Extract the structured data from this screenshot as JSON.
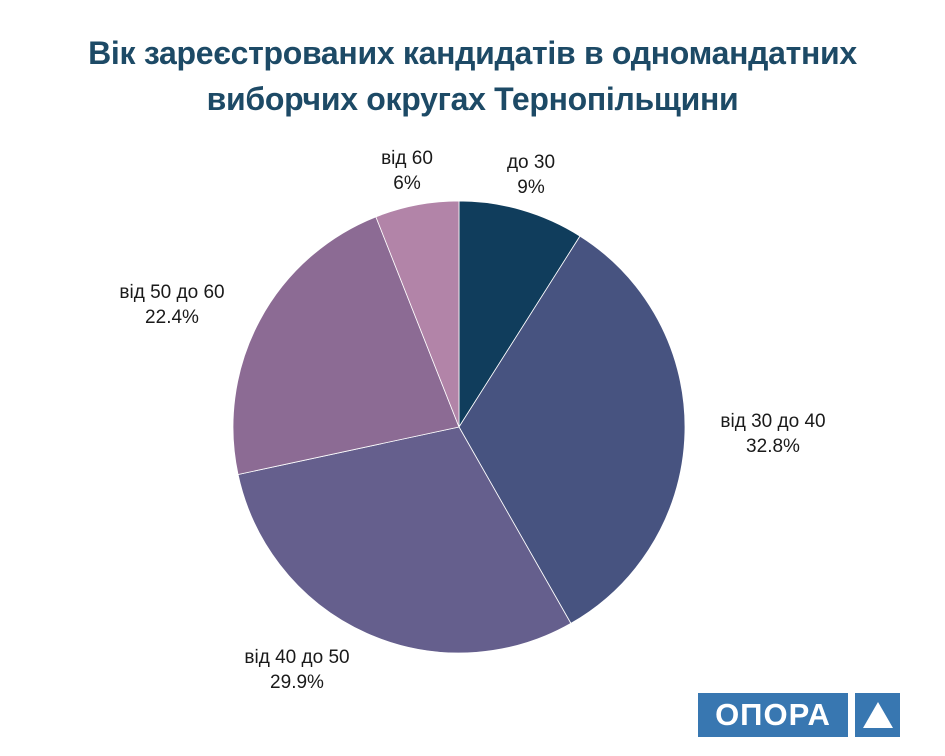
{
  "title": {
    "full": "Вік зареєстрованих кандидатів в одномандатних виборчих округах Тернопільщини",
    "lines": [
      "Вік зареєстрованих кандидатів в одномандатних",
      "виборчих округах Тернопільщини"
    ],
    "color": "#1d4a66"
  },
  "chart_data": {
    "type": "pie",
    "title": "Вік зареєстрованих кандидатів в одномандатних виборчих округах Тернопільщини",
    "legend": "none",
    "direction": "clockwise",
    "start_angle": "12 o'clock",
    "labels_position": "outside",
    "categories": [
      "до 30",
      "від 30 до 40",
      "від 40 до 50",
      "від 50 до 60",
      "від 60"
    ],
    "values": [
      9,
      32.8,
      29.9,
      22.4,
      6
    ],
    "text_color": "#1a1a1a",
    "slices": [
      {
        "id": "do-30",
        "name": "до 30",
        "pct": "9%",
        "value": 9,
        "color": "#103d5c"
      },
      {
        "id": "vid-30-do-40",
        "name": "від 30 до 40",
        "pct": "32.8%",
        "value": 32.8,
        "color": "#475380"
      },
      {
        "id": "vid-40-do-50",
        "name": "від 40 до 50",
        "pct": "29.9%",
        "value": 29.9,
        "color": "#655f8d"
      },
      {
        "id": "vid-50-do-60",
        "name": "від 50 до 60",
        "pct": "22.4%",
        "value": 22.4,
        "color": "#8c6b94"
      },
      {
        "id": "vid-60",
        "name": "від 60",
        "pct": "6%",
        "value": 6,
        "color": "#b284a8"
      }
    ]
  },
  "logo": {
    "text": "ОПОРА",
    "background": "#3877b1",
    "text_color": "#ffffff",
    "icon": "triangle-up-icon",
    "icon_color": "#ffffff"
  }
}
